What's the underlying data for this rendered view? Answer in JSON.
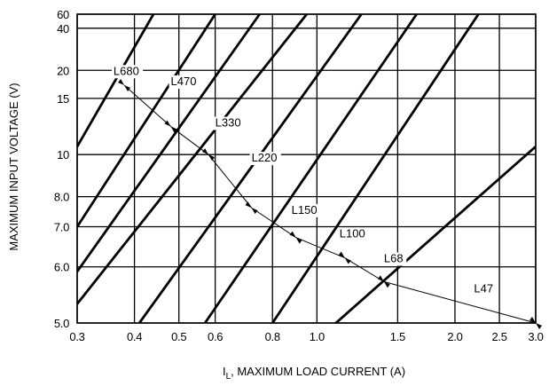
{
  "chart_data": {
    "type": "line",
    "xlabel": "IL, MAXIMUM LOAD CURRENT (A)",
    "xlabel_main": "I",
    "xlabel_sub": "L",
    "xlabel_rest": ", MAXIMUM LOAD CURRENT (A)",
    "ylabel": "MAXIMUM INPUT VOLTAGE (V)",
    "x_scale": "log",
    "y_scale": "reciprocal",
    "xlim": [
      0.3,
      3.0
    ],
    "ylim": [
      5.0,
      60
    ],
    "grid": true,
    "x_ticks": [
      {
        "value": 0.3,
        "label": "0.3"
      },
      {
        "value": 0.4,
        "label": "0.4"
      },
      {
        "value": 0.5,
        "label": "0.5"
      },
      {
        "value": 0.6,
        "label": "0.6"
      },
      {
        "value": 0.8,
        "label": "0.8"
      },
      {
        "value": 1.0,
        "label": "1.0"
      },
      {
        "value": 1.5,
        "label": "1.5"
      },
      {
        "value": 2.0,
        "label": "2.0"
      },
      {
        "value": 2.5,
        "label": "2.5"
      },
      {
        "value": 3.0,
        "label": "3.0"
      }
    ],
    "y_ticks": [
      {
        "value": 5.0,
        "label": "5.0"
      },
      {
        "value": 6.0,
        "label": "6.0"
      },
      {
        "value": 7.0,
        "label": "7.0"
      },
      {
        "value": 8.0,
        "label": "8.0"
      },
      {
        "value": 10,
        "label": "10"
      },
      {
        "value": 15,
        "label": "15"
      },
      {
        "value": 20,
        "label": "20"
      },
      {
        "value": 40,
        "label": "40"
      },
      {
        "value": 60,
        "label": "60"
      }
    ],
    "series": [
      {
        "name": "L680",
        "points": [
          [
            0.3,
            10.5
          ],
          [
            0.44,
            60
          ]
        ]
      },
      {
        "name": "L470",
        "points": [
          [
            0.3,
            7.0
          ],
          [
            0.6,
            60
          ]
        ]
      },
      {
        "name": "L330",
        "points": [
          [
            0.3,
            5.9
          ],
          [
            0.75,
            60
          ]
        ]
      },
      {
        "name": "L220",
        "points": [
          [
            0.3,
            5.3
          ],
          [
            0.95,
            60
          ]
        ]
      },
      {
        "name": "L150",
        "points": [
          [
            0.41,
            5.0
          ],
          [
            1.25,
            60
          ]
        ]
      },
      {
        "name": "L100",
        "points": [
          [
            0.57,
            5.0
          ],
          [
            1.65,
            60
          ]
        ]
      },
      {
        "name": "L68",
        "points": [
          [
            0.8,
            5.0
          ],
          [
            2.25,
            60
          ]
        ]
      },
      {
        "name": "L47",
        "points": [
          [
            1.1,
            5.0
          ],
          [
            3.0,
            10.5
          ]
        ]
      }
    ],
    "boundary": {
      "points": [
        [
          0.38,
          17
        ],
        [
          0.48,
          12
        ],
        [
          0.58,
          10
        ],
        [
          0.72,
          7.6
        ],
        [
          0.9,
          6.7
        ],
        [
          1.15,
          6.2
        ],
        [
          1.4,
          5.7
        ],
        [
          3.0,
          5.0
        ]
      ],
      "labels": [
        {
          "text": "L680",
          "point": [
            0.36,
            19
          ]
        },
        {
          "text": "L470",
          "point": [
            0.48,
            17
          ]
        },
        {
          "text": "L330",
          "point": [
            0.6,
            12
          ]
        },
        {
          "text": "L220",
          "point": [
            0.72,
            9.6
          ]
        },
        {
          "text": "L150",
          "point": [
            0.88,
            7.4
          ]
        },
        {
          "text": "L100",
          "point": [
            1.12,
            6.7
          ]
        },
        {
          "text": "L68",
          "point": [
            1.4,
            6.1
          ]
        },
        {
          "text": "L47",
          "point": [
            2.2,
            5.5
          ]
        }
      ]
    }
  }
}
